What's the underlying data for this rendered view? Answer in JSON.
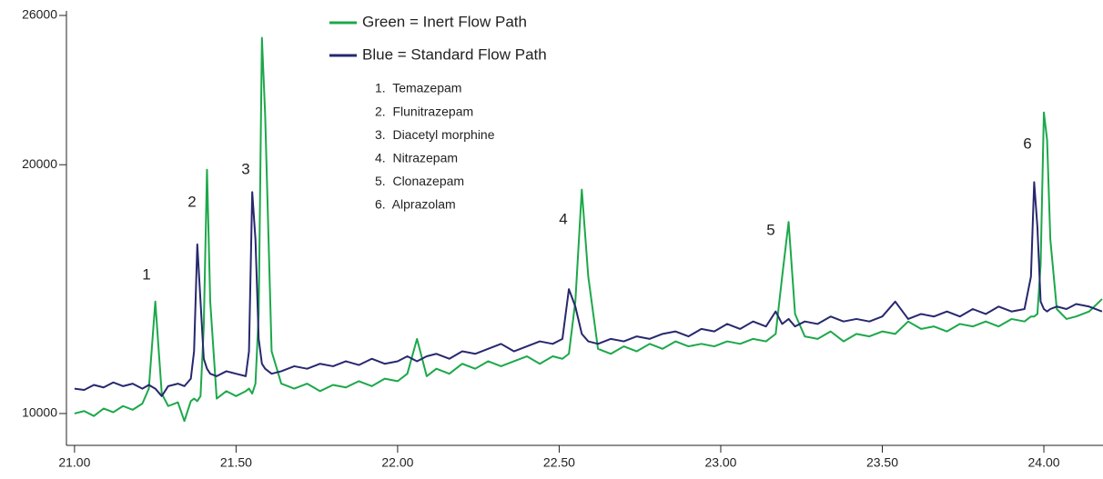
{
  "chart_data": {
    "type": "line",
    "x": [
      21.0,
      21.03,
      21.06,
      21.09,
      21.12,
      21.15,
      21.18,
      21.21,
      21.23,
      21.25,
      21.27,
      21.29,
      21.32,
      21.34,
      21.36,
      21.37,
      21.38,
      21.39,
      21.4,
      21.41,
      21.42,
      21.44,
      21.47,
      21.5,
      21.53,
      21.54,
      21.55,
      21.56,
      21.57,
      21.58,
      21.59,
      21.61,
      21.64,
      21.68,
      21.72,
      21.76,
      21.8,
      21.84,
      21.88,
      21.92,
      21.96,
      22.0,
      22.03,
      22.06,
      22.09,
      22.12,
      22.16,
      22.2,
      22.24,
      22.28,
      22.32,
      22.36,
      22.4,
      22.44,
      22.48,
      22.51,
      22.53,
      22.55,
      22.57,
      22.59,
      22.62,
      22.66,
      22.7,
      22.74,
      22.78,
      22.82,
      22.86,
      22.9,
      22.94,
      22.98,
      23.02,
      23.06,
      23.1,
      23.14,
      23.17,
      23.19,
      23.21,
      23.23,
      23.26,
      23.3,
      23.34,
      23.38,
      23.42,
      23.46,
      23.5,
      23.54,
      23.58,
      23.62,
      23.66,
      23.7,
      23.74,
      23.78,
      23.82,
      23.86,
      23.9,
      23.94,
      23.96,
      23.97,
      23.98,
      23.99,
      24.0,
      24.01,
      24.02,
      24.04,
      24.07,
      24.1,
      24.14,
      24.18
    ],
    "series": [
      {
        "name": "Green = Inert Flow Path",
        "color": "#1ca84a",
        "values": [
          10000,
          10100,
          9900,
          10200,
          10050,
          10300,
          10150,
          10400,
          11000,
          14500,
          10800,
          10300,
          10450,
          9700,
          10500,
          10600,
          10500,
          10700,
          13500,
          19800,
          14500,
          10600,
          10900,
          10700,
          10900,
          11000,
          10800,
          11200,
          14000,
          25100,
          22000,
          12500,
          11200,
          11000,
          11200,
          10900,
          11150,
          11050,
          11300,
          11100,
          11400,
          11300,
          11600,
          13000,
          11500,
          11800,
          11600,
          12000,
          11800,
          12100,
          11900,
          12100,
          12300,
          12000,
          12300,
          12200,
          12400,
          14500,
          19000,
          15500,
          12600,
          12400,
          12700,
          12500,
          12800,
          12600,
          12900,
          12700,
          12800,
          12700,
          12900,
          12800,
          13000,
          12900,
          13200,
          15500,
          17700,
          14000,
          13100,
          13000,
          13300,
          12900,
          13200,
          13100,
          13300,
          13200,
          13700,
          13400,
          13500,
          13300,
          13600,
          13500,
          13700,
          13500,
          13800,
          13700,
          13900,
          13900,
          14000,
          16000,
          22100,
          21000,
          17000,
          14200,
          13800,
          13900,
          14100,
          14600
        ]
      },
      {
        "name": "Blue = Standard Flow Path",
        "color": "#27286e",
        "values": [
          11000,
          10950,
          11150,
          11050,
          11250,
          11100,
          11200,
          11000,
          11150,
          11000,
          10700,
          11100,
          11200,
          11100,
          11400,
          12500,
          16800,
          14500,
          12200,
          11800,
          11600,
          11500,
          11700,
          11600,
          11500,
          12500,
          18900,
          17000,
          13000,
          12000,
          11800,
          11600,
          11700,
          11900,
          11800,
          12000,
          11900,
          12100,
          11950,
          12200,
          12000,
          12100,
          12300,
          12100,
          12300,
          12400,
          12200,
          12500,
          12400,
          12600,
          12800,
          12500,
          12700,
          12900,
          12800,
          13000,
          15000,
          14300,
          13200,
          12900,
          12800,
          13000,
          12900,
          13100,
          13000,
          13200,
          13300,
          13100,
          13400,
          13300,
          13600,
          13400,
          13700,
          13500,
          14100,
          13600,
          13800,
          13500,
          13700,
          13600,
          13900,
          13700,
          13800,
          13700,
          13900,
          14500,
          13800,
          14000,
          13900,
          14100,
          13900,
          14200,
          14000,
          14300,
          14100,
          14200,
          15500,
          19300,
          17500,
          14500,
          14200,
          14100,
          14200,
          14300,
          14200,
          14400,
          14300,
          14100
        ]
      }
    ],
    "xlim": [
      20.975,
      24.183
    ],
    "ylim": [
      8720,
      26000
    ],
    "xticks": [
      {
        "value": 21,
        "label": "21.00"
      },
      {
        "value": 21.5,
        "label": "21.50"
      },
      {
        "value": 22,
        "label": "22.00"
      },
      {
        "value": 22.5,
        "label": "22.50"
      },
      {
        "value": 23,
        "label": "23.00"
      },
      {
        "value": 23.5,
        "label": "23.50"
      },
      {
        "value": 24,
        "label": "24.00"
      }
    ],
    "yticks": [
      10000,
      20000,
      26000
    ],
    "annotations": [
      "1",
      "2",
      "3",
      "4",
      "5",
      "6"
    ],
    "compounds": [
      "1.  Temazepam",
      "2.  Flunitrazepam",
      "3.  Diacetyl morphine",
      "4.  Nitrazepam",
      "5.  Clonazepam",
      "6.  Alprazolam"
    ]
  }
}
